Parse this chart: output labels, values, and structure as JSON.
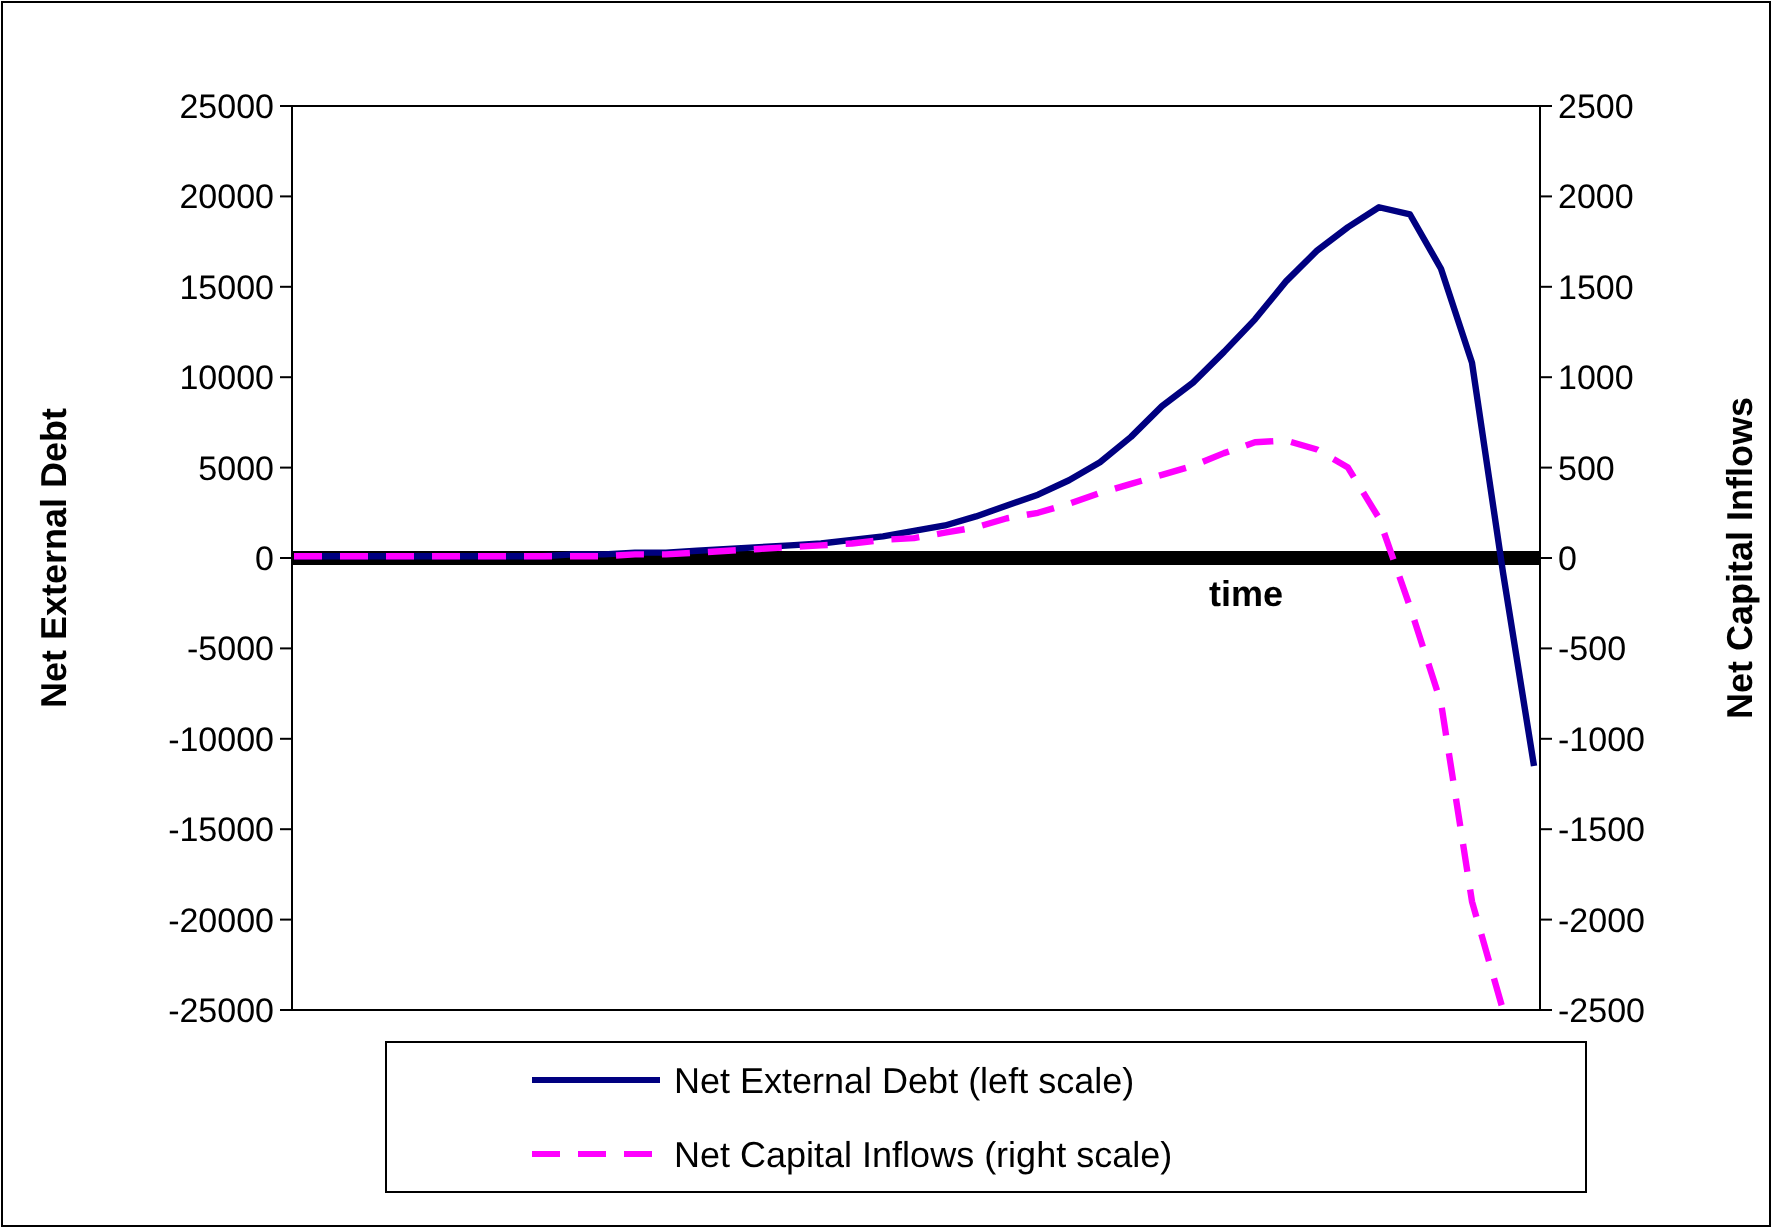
{
  "chart_data": {
    "type": "line",
    "xlabel": "time",
    "ylabel": "Net External Debt",
    "y2label": "Net Capital Inflows",
    "categories": [
      null,
      null,
      null,
      null,
      null,
      null,
      null,
      null,
      null,
      null,
      null,
      null,
      null,
      null,
      null,
      null,
      null,
      null,
      null,
      null,
      null,
      null,
      null,
      null,
      null,
      null,
      null,
      null,
      null,
      null,
      null,
      null,
      null,
      null,
      null,
      null,
      null,
      null,
      null,
      null,
      null
    ],
    "series": [
      {
        "name": "Net External Debt (left scale)",
        "color": "#000080",
        "line_style": "solid",
        "values": [
          100,
          100,
          100,
          100,
          100,
          100,
          100,
          100,
          100,
          200,
          200,
          300,
          300,
          400,
          500,
          600,
          700,
          800,
          1000,
          1200,
          1500,
          1800,
          2300,
          2900,
          3500,
          4300,
          5300,
          6700,
          8400,
          9700,
          11400,
          13200,
          15300,
          17000,
          18300,
          19400,
          19000,
          16000,
          10800,
          -800,
          -11500
        ]
      },
      {
        "name": "Net Capital Inflows (right scale)",
        "color": "#ff00ff",
        "line_style": "dashed",
        "axis": "y2",
        "values": [
          10,
          10,
          10,
          10,
          10,
          10,
          10,
          10,
          10,
          10,
          10,
          20,
          20,
          30,
          40,
          50,
          60,
          70,
          80,
          100,
          110,
          140,
          170,
          220,
          250,
          300,
          360,
          410,
          460,
          510,
          580,
          640,
          650,
          600,
          500,
          220,
          -270,
          -800,
          -1900,
          -2500,
          null
        ]
      }
    ],
    "ylim": [
      -25000,
      25000
    ],
    "yticks": [
      -25000,
      -20000,
      -15000,
      -10000,
      -5000,
      0,
      5000,
      10000,
      15000,
      20000,
      25000
    ],
    "y2lim": [
      -2500,
      2500
    ],
    "y2ticks": [
      -2500,
      -2000,
      -1500,
      -1000,
      -500,
      0,
      500,
      1000,
      1500,
      2000,
      2500
    ],
    "tick_labels": "y",
    "legend": "bottom"
  }
}
